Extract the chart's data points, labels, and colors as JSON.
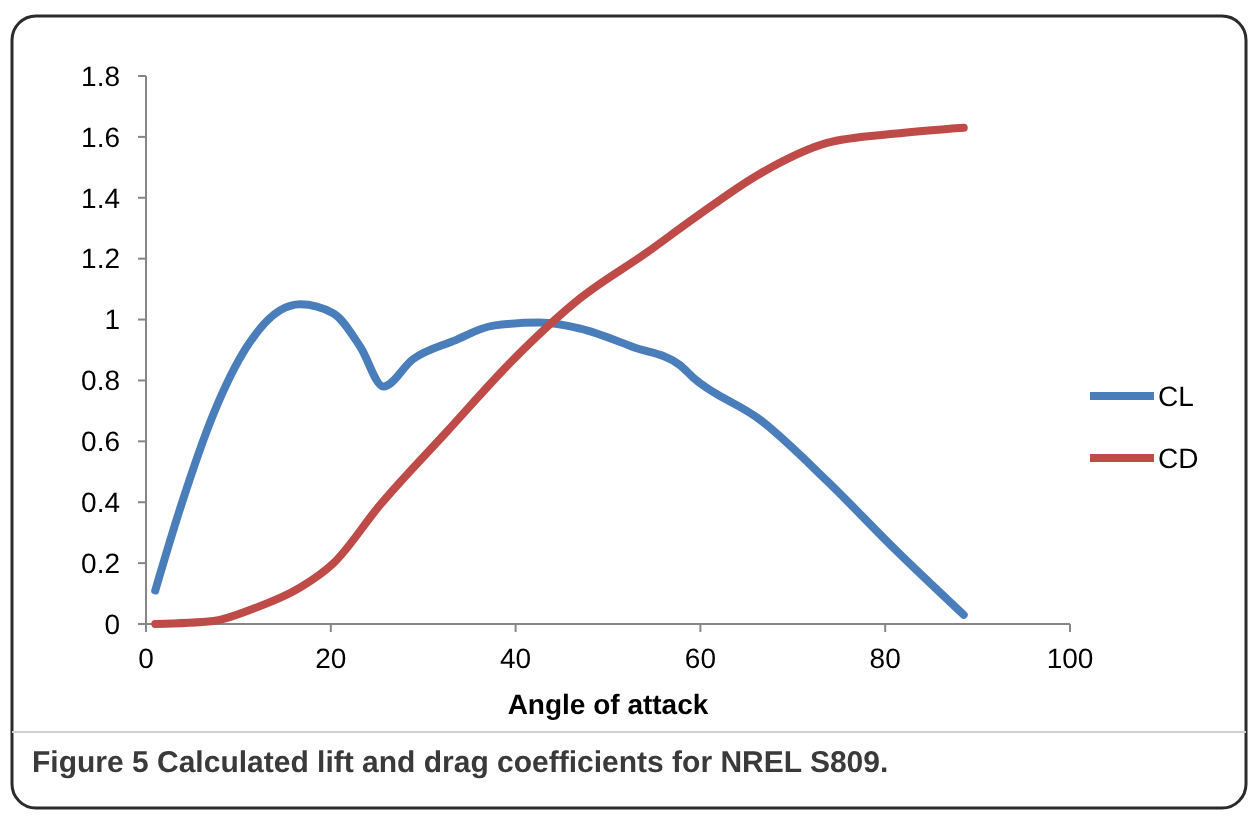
{
  "chart_data": {
    "type": "line",
    "xlabel": "Angle of attack",
    "xlim": [
      0,
      100
    ],
    "xticks": [
      0,
      20,
      40,
      60,
      80,
      100
    ],
    "ylim": [
      0,
      1.8
    ],
    "yticks": [
      0,
      0.2,
      0.4,
      0.6,
      0.8,
      1,
      1.2,
      1.4,
      1.6,
      1.8
    ],
    "grid": false,
    "legend": "right",
    "marker": "none",
    "line_style": "solid",
    "series": [
      {
        "name": "CL",
        "color": "#4a7ebb",
        "x": [
          1,
          3.7,
          7.3,
          10.9,
          14.5,
          16.7,
          20.3,
          23.2,
          25.7,
          28.9,
          33.3,
          37.6,
          42.6,
          47,
          52.7,
          57.8,
          59.2,
          66.5,
          73.7,
          80.9,
          88.5
        ],
        "values": [
          0.11,
          0.38,
          0.69,
          0.91,
          1.03,
          1.05,
          1.02,
          0.91,
          0.78,
          0.87,
          0.93,
          0.98,
          0.99,
          0.97,
          0.91,
          0.85,
          0.81,
          0.67,
          0.47,
          0.25,
          0.03
        ]
      },
      {
        "name": "CD",
        "color": "#be4b48",
        "x": [
          1,
          7.3,
          11.6,
          16.7,
          20.3,
          25.3,
          32.5,
          39.8,
          47,
          54.2,
          59.2,
          66.5,
          73.7,
          80.9,
          88.5
        ],
        "values": [
          0,
          0.01,
          0.05,
          0.12,
          0.2,
          0.39,
          0.63,
          0.87,
          1.07,
          1.22,
          1.33,
          1.48,
          1.58,
          1.61,
          1.63
        ]
      }
    ],
    "annotations": [
      "Figure 5 Calculated lift and drag coefficients for NREL S809."
    ]
  }
}
